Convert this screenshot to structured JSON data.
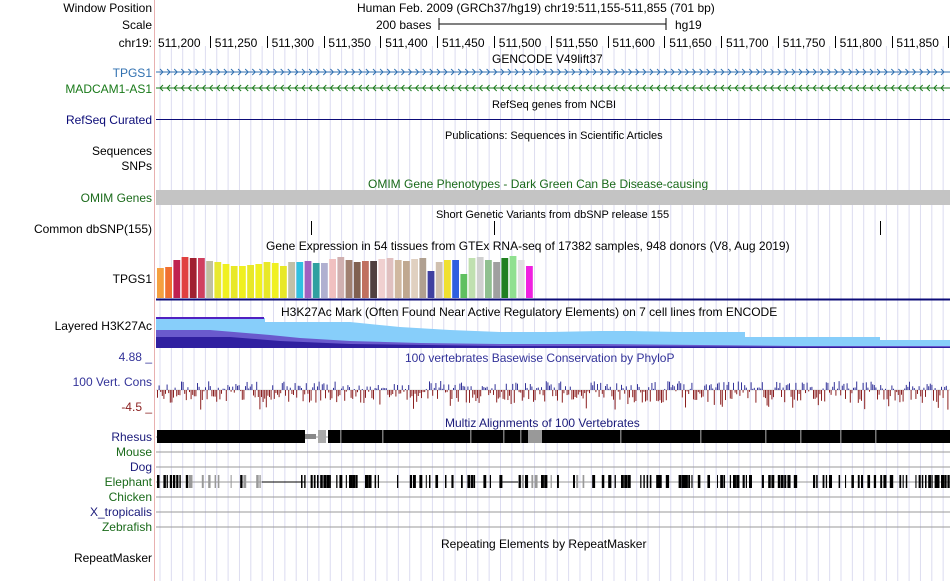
{
  "header": {
    "window_position_label": "Window Position",
    "scale_label": "Scale",
    "chrom_label": "chr19:",
    "assembly_position": "Human Feb. 2009 (GRCh37/hg19)   chr19:511,155-511,855 (701 bp)",
    "scale_text": "200 bases",
    "db": "hg19",
    "ticks": [
      "511,200",
      "511,250",
      "511,300",
      "511,350",
      "511,400",
      "511,450",
      "511,500",
      "511,550",
      "511,600",
      "511,650",
      "511,700",
      "511,750",
      "511,800",
      "511,850"
    ]
  },
  "tracks": {
    "gencode": {
      "title": "GENCODE V49lift37",
      "items": [
        {
          "label": "TPGS1",
          "color": "#3070b0"
        },
        {
          "label": "MADCAM1-AS1",
          "color": "#1a7a1a"
        }
      ]
    },
    "refseq": {
      "title": "RefSeq genes from NCBI",
      "label": "RefSeq Curated",
      "color": "#0c0c78"
    },
    "publications": {
      "title": "Publications: Sequences in Scientific Articles",
      "labels": [
        "Sequences",
        "SNPs"
      ]
    },
    "omim": {
      "title": "OMIM Gene Phenotypes - Dark Green Can Be Disease-causing",
      "label": "OMIM Genes",
      "color": "#1a6a1a"
    },
    "dbsnp": {
      "title": "Short Genetic Variants from dbSNP release 155",
      "label": "Common dbSNP(155)"
    },
    "gtex": {
      "title": "Gene Expression in 54 tissues from GTEx RNA-seq of 17382 samples, 948 donors (V8, Aug 2019)",
      "label": "TPGS1"
    },
    "h3k27ac": {
      "title": "H3K27Ac Mark (Often Found Near Active Regulatory Elements) on 7 cell lines from ENCODE",
      "label": "Layered H3K27Ac"
    },
    "cons": {
      "title": "100 vertebrates Basewise Conservation by PhyloP",
      "label": "100 Vert. Cons",
      "max": "4.88 _",
      "min": "-4.5 _",
      "color": "#333399",
      "neg_color": "#8b2020"
    },
    "multiz": {
      "title": "Multiz Alignments of 100 Vertebrates",
      "species": [
        {
          "label": "Rhesus",
          "color": "#1a1a7a"
        },
        {
          "label": "Mouse",
          "color": "#1a6a1a"
        },
        {
          "label": "Dog",
          "color": "#1a1a7a"
        },
        {
          "label": "Elephant",
          "color": "#1a6a1a"
        },
        {
          "label": "Chicken",
          "color": "#1a6a1a"
        },
        {
          "label": "X_tropicalis",
          "color": "#1a1a7a"
        },
        {
          "label": "Zebrafish",
          "color": "#1a6a1a"
        }
      ]
    },
    "repeatmasker": {
      "title": "Repeating Elements by RepeatMasker",
      "label": "RepeatMasker"
    }
  }
}
